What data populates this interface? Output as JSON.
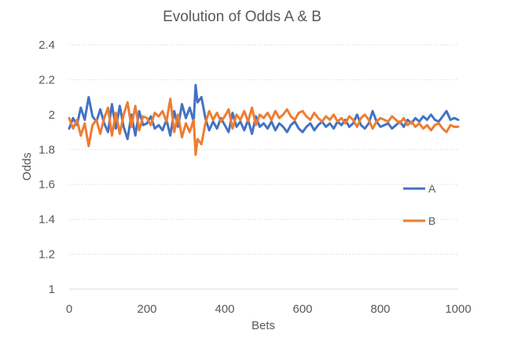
{
  "chart_data": {
    "type": "line",
    "title": "Evolution of Odds A & B",
    "xlabel": "Bets",
    "ylabel": "Odds",
    "xlim": [
      0,
      1000
    ],
    "ylim": [
      1,
      2.4
    ],
    "x_ticks": [
      "0",
      "200",
      "400",
      "600",
      "800",
      "1000"
    ],
    "y_ticks": [
      "1",
      "1.2",
      "1.4",
      "1.6",
      "1.8",
      "2",
      "2.2",
      "2.4"
    ],
    "grid": "horizontal dotted",
    "legend_position": "right",
    "series": [
      {
        "name": "A",
        "color": "#4472C4",
        "x": [
          0,
          10,
          20,
          30,
          40,
          50,
          60,
          70,
          80,
          90,
          100,
          110,
          120,
          130,
          140,
          150,
          160,
          170,
          180,
          190,
          200,
          210,
          220,
          230,
          240,
          250,
          260,
          270,
          280,
          290,
          300,
          310,
          320,
          325,
          330,
          340,
          350,
          360,
          370,
          380,
          390,
          400,
          410,
          420,
          430,
          440,
          450,
          460,
          470,
          480,
          490,
          500,
          510,
          520,
          530,
          540,
          550,
          560,
          570,
          580,
          590,
          600,
          610,
          620,
          630,
          640,
          650,
          660,
          670,
          680,
          690,
          700,
          710,
          720,
          730,
          740,
          750,
          760,
          770,
          780,
          790,
          800,
          810,
          820,
          830,
          840,
          850,
          860,
          870,
          880,
          890,
          900,
          910,
          920,
          930,
          940,
          950,
          960,
          970,
          980,
          990,
          1000
        ],
        "y": [
          1.92,
          1.98,
          1.94,
          2.04,
          1.97,
          2.1,
          1.99,
          1.96,
          2.03,
          1.95,
          1.9,
          2.06,
          1.92,
          2.05,
          1.93,
          1.86,
          2.0,
          1.88,
          2.02,
          1.94,
          1.95,
          1.99,
          1.92,
          1.94,
          1.91,
          1.97,
          1.88,
          2.02,
          1.93,
          2.06,
          1.98,
          2.04,
          1.96,
          2.17,
          2.07,
          2.1,
          1.98,
          1.91,
          1.96,
          1.92,
          1.98,
          1.94,
          1.9,
          2.01,
          1.93,
          1.96,
          1.91,
          1.97,
          1.89,
          1.99,
          1.93,
          1.95,
          1.92,
          1.96,
          1.91,
          1.95,
          1.93,
          1.9,
          1.94,
          1.96,
          1.92,
          1.9,
          1.93,
          1.95,
          1.91,
          1.94,
          1.96,
          1.93,
          1.95,
          1.92,
          1.96,
          1.94,
          1.97,
          1.93,
          1.95,
          2.0,
          1.94,
          1.92,
          1.95,
          2.02,
          1.96,
          1.93,
          1.94,
          1.95,
          1.92,
          1.94,
          1.96,
          1.93,
          1.97,
          1.95,
          1.98,
          1.96,
          1.99,
          1.97,
          2.0,
          1.97,
          1.96,
          1.99,
          2.02,
          1.97,
          1.98,
          1.97
        ]
      },
      {
        "name": "B",
        "color": "#ED7D31",
        "x": [
          0,
          10,
          20,
          30,
          40,
          50,
          60,
          70,
          80,
          90,
          100,
          110,
          120,
          130,
          140,
          150,
          160,
          170,
          180,
          190,
          200,
          210,
          220,
          230,
          240,
          250,
          260,
          270,
          280,
          290,
          300,
          310,
          320,
          325,
          330,
          340,
          350,
          360,
          370,
          380,
          390,
          400,
          410,
          420,
          430,
          440,
          450,
          460,
          470,
          480,
          490,
          500,
          510,
          520,
          530,
          540,
          550,
          560,
          570,
          580,
          590,
          600,
          610,
          620,
          630,
          640,
          650,
          660,
          670,
          680,
          690,
          700,
          710,
          720,
          730,
          740,
          750,
          760,
          770,
          780,
          790,
          800,
          810,
          820,
          830,
          840,
          850,
          860,
          870,
          880,
          890,
          900,
          910,
          920,
          930,
          940,
          950,
          960,
          970,
          980,
          990,
          1000
        ],
        "y": [
          1.98,
          1.92,
          1.97,
          1.88,
          1.95,
          1.82,
          1.94,
          1.97,
          1.89,
          1.98,
          2.04,
          1.88,
          2.01,
          1.89,
          2.0,
          2.07,
          1.93,
          2.05,
          1.91,
          1.99,
          1.98,
          1.94,
          2.01,
          1.99,
          2.02,
          1.96,
          2.09,
          1.9,
          2.0,
          1.87,
          1.95,
          1.9,
          1.97,
          1.77,
          1.86,
          1.83,
          1.95,
          2.02,
          1.97,
          2.01,
          1.96,
          1.99,
          2.03,
          1.92,
          2.0,
          1.97,
          2.02,
          1.96,
          2.04,
          1.94,
          2.0,
          1.98,
          2.01,
          1.97,
          2.02,
          1.98,
          2.0,
          2.03,
          1.99,
          1.97,
          2.01,
          2.02,
          1.99,
          1.97,
          2.01,
          1.98,
          1.96,
          1.99,
          1.97,
          2.0,
          1.96,
          1.98,
          1.95,
          1.99,
          1.97,
          1.93,
          1.98,
          2.0,
          1.97,
          1.92,
          1.96,
          1.98,
          1.97,
          1.96,
          1.99,
          1.97,
          1.95,
          1.98,
          1.94,
          1.96,
          1.93,
          1.95,
          1.92,
          1.94,
          1.91,
          1.94,
          1.95,
          1.92,
          1.9,
          1.94,
          1.93,
          1.93
        ]
      }
    ]
  }
}
